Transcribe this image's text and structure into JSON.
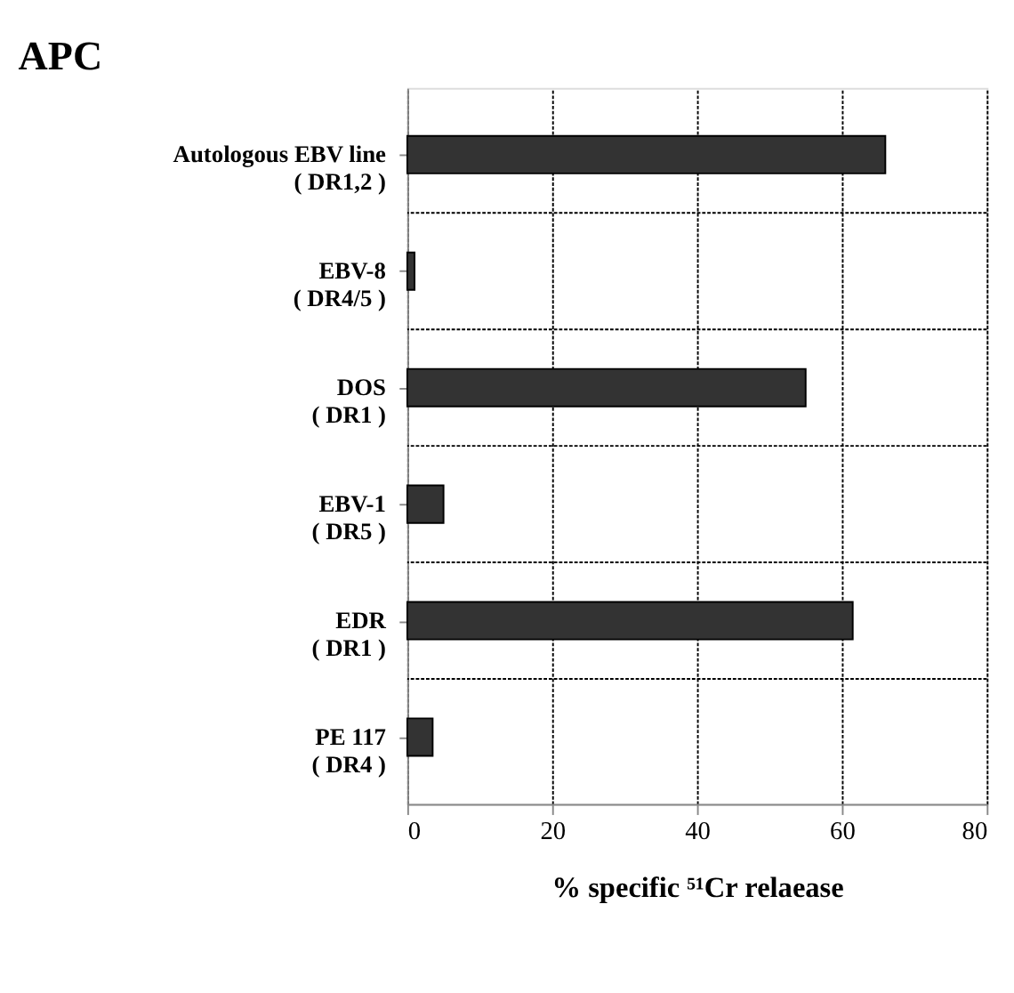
{
  "chart_data": {
    "type": "bar",
    "orientation": "horizontal",
    "title": "APC",
    "xlabel": "% specific ⁵¹Cr relaease",
    "categories": [
      "Autologous EBV line\n( DR1,2 )",
      "EBV-8\n( DR4/5 )",
      "DOS\n( DR1 )",
      "EBV-1\n( DR5 )",
      "EDR\n( DR1 )",
      "PE 117\n( DR4 )"
    ],
    "values": [
      66,
      1,
      55,
      5,
      61.5,
      3.5
    ],
    "color": "#333333",
    "xlim": [
      0,
      80
    ],
    "xticks": [
      0,
      20,
      40,
      60,
      80
    ],
    "grid": true
  }
}
